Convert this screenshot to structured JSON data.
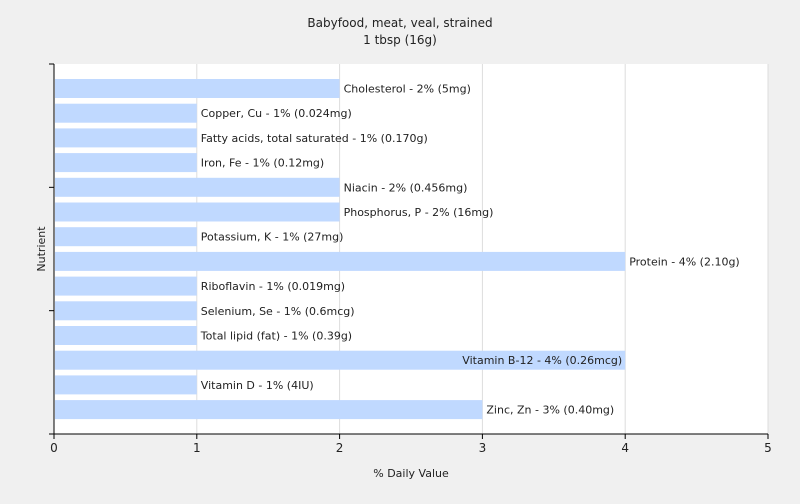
{
  "chart_data": {
    "type": "bar",
    "orientation": "horizontal",
    "title": "Babyfood, meat, veal, strained",
    "subtitle": "1 tbsp (16g)",
    "xlabel": "% Daily Value",
    "ylabel": "Nutrient",
    "xlim": [
      0,
      5
    ],
    "xticks": [
      "0",
      "1",
      "2",
      "3",
      "4",
      "5"
    ],
    "grid": true,
    "legend": "none",
    "bar_color": "#c0d9ff",
    "categories": [
      "Cholesterol",
      "Copper, Cu",
      "Fatty acids, total saturated",
      "Iron, Fe",
      "Niacin",
      "Phosphorus, P",
      "Potassium, K",
      "Protein",
      "Riboflavin",
      "Selenium, Se",
      "Total lipid (fat)",
      "Vitamin B-12",
      "Vitamin D",
      "Zinc, Zn"
    ],
    "values": [
      2,
      1,
      1,
      1,
      2,
      2,
      1,
      4,
      1,
      1,
      1,
      4,
      1,
      3
    ],
    "data_labels": [
      "Cholesterol - 2% (5mg)",
      "Copper, Cu - 1% (0.024mg)",
      "Fatty acids, total saturated - 1% (0.170g)",
      "Iron, Fe - 1% (0.12mg)",
      "Niacin - 2% (0.456mg)",
      "Phosphorus, P - 2% (16mg)",
      "Potassium, K - 1% (27mg)",
      "Protein - 4% (2.10g)",
      "Riboflavin - 1% (0.019mg)",
      "Selenium, Se - 1% (0.6mcg)",
      "Total lipid (fat) - 1% (0.39g)",
      "Vitamin B-12 - 4% (0.26mcg)",
      "Vitamin D - 1% (4IU)",
      "Zinc, Zn - 3% (0.40mg)"
    ]
  }
}
